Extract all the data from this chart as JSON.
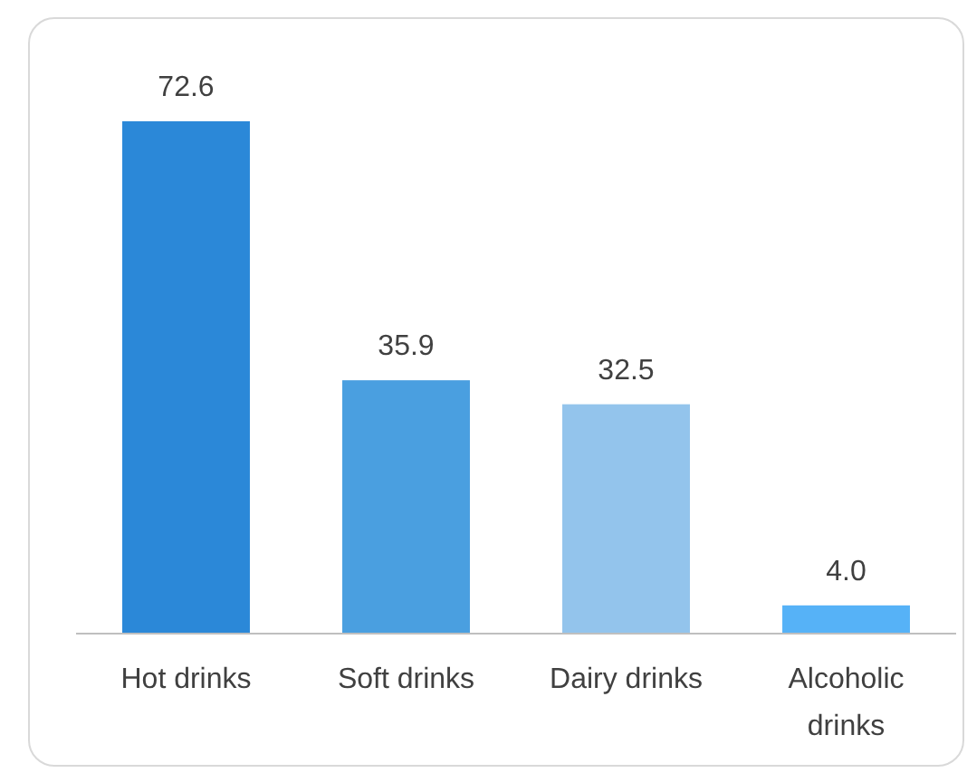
{
  "chart_data": {
    "type": "bar",
    "categories": [
      "Hot drinks",
      "Soft drinks",
      "Dairy drinks",
      "Alcoholic drinks"
    ],
    "values": [
      72.6,
      35.9,
      32.5,
      4.0
    ],
    "colors": [
      "#2b88d8",
      "#4a9fe0",
      "#93c4ec",
      "#56b2f7"
    ],
    "value_labels": [
      "72.6",
      "35.9",
      "32.5",
      "4.0"
    ],
    "data_labels": true
  }
}
